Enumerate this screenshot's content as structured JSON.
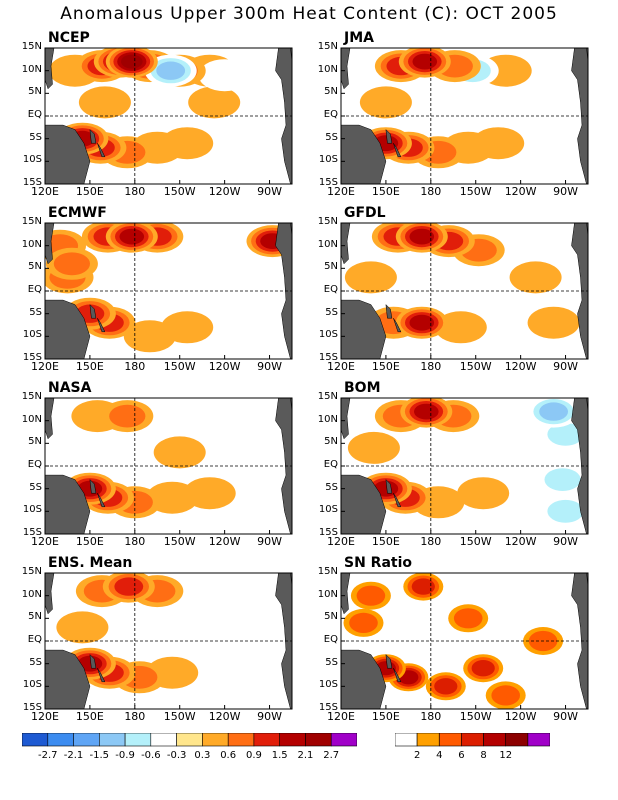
{
  "title": "Anomalous Upper 300m Heat Content (C): OCT 2005",
  "lat_ticks": [
    "15N",
    "10N",
    "5N",
    "EQ",
    "5S",
    "10S",
    "15S"
  ],
  "lon_ticks": [
    "120E",
    "150E",
    "180",
    "150W",
    "120W",
    "90W"
  ],
  "panels": [
    "NCEP",
    "JMA",
    "ECMWF",
    "GFDL",
    "NASA",
    "BOM",
    "ENS. Mean",
    "SN Ratio"
  ],
  "colors": {
    "land": "#5a5a5a",
    "anomaly_scale": [
      "#1e5ad2",
      "#3c8cf0",
      "#5fa5f5",
      "#8cc8f5",
      "#b4f0fa",
      "#ffffff",
      "#ffe68c",
      "#ffaa28",
      "#ff6e14",
      "#e11e0a",
      "#b40000",
      "#a00000",
      "#a000c8"
    ],
    "sn_scale": [
      "#ffffff",
      "#ffa000",
      "#ff5a00",
      "#dc1e00",
      "#b40000",
      "#8c0000",
      "#a000c8"
    ]
  },
  "chart_data": [
    {
      "type": "heatmap",
      "panels": [
        "NCEP",
        "JMA",
        "ECMWF",
        "GFDL",
        "NASA",
        "BOM",
        "ENS. Mean"
      ],
      "x": [
        "120E",
        "150E",
        "180",
        "150W",
        "120W",
        "90W"
      ],
      "y": [
        "15N",
        "10N",
        "5N",
        "EQ",
        "5S",
        "10S",
        "15S"
      ],
      "colorbar_labels": [
        "-2.7",
        "-2.1",
        "-1.5",
        "-0.9",
        "-0.6",
        "-0.3",
        "0.3",
        "0.6",
        "0.9",
        "1.5",
        "2.1",
        "2.7"
      ],
      "features": {
        "NCEP": [
          {
            "lon": 178,
            "lat": 12,
            "v": 2.4
          },
          {
            "lon": 170,
            "lat": 12,
            "v": 1.6
          },
          {
            "lon": 158,
            "lat": 11,
            "v": 1.1
          },
          {
            "lon": 190,
            "lat": 11,
            "v": 0.9
          },
          {
            "lon": 210,
            "lat": 10,
            "v": 0.8
          },
          {
            "lon": 140,
            "lat": 10,
            "v": 0.5
          },
          {
            "lon": 230,
            "lat": 10,
            "v": 0.4
          },
          {
            "lon": 204,
            "lat": 10,
            "v": -0.9
          },
          {
            "lon": 240,
            "lat": 9,
            "v": -0.5
          },
          {
            "lon": 265,
            "lat": 12,
            "v": -0.5
          },
          {
            "lon": 145,
            "lat": -5,
            "v": 1.7
          },
          {
            "lon": 157,
            "lat": -7,
            "v": 1.0
          },
          {
            "lon": 175,
            "lat": -8,
            "v": 0.8
          },
          {
            "lon": 195,
            "lat": -7,
            "v": 0.5
          },
          {
            "lon": 215,
            "lat": -6,
            "v": 0.4
          },
          {
            "lon": 250,
            "lat": -2,
            "v": -0.4
          },
          {
            "lon": 250,
            "lat": -12,
            "v": -0.5
          },
          {
            "lon": 160,
            "lat": 3,
            "v": 0.5
          },
          {
            "lon": 233,
            "lat": 3,
            "v": 0.4
          }
        ],
        "JMA": [
          {
            "lon": 176,
            "lat": 12,
            "v": 1.5
          },
          {
            "lon": 160,
            "lat": 11,
            "v": 0.9
          },
          {
            "lon": 196,
            "lat": 11,
            "v": 0.8
          },
          {
            "lon": 208,
            "lat": 10,
            "v": -0.6
          },
          {
            "lon": 230,
            "lat": 10,
            "v": 0.5
          },
          {
            "lon": 150,
            "lat": -6,
            "v": 1.6
          },
          {
            "lon": 165,
            "lat": -7,
            "v": 1.1
          },
          {
            "lon": 185,
            "lat": -8,
            "v": 0.7
          },
          {
            "lon": 205,
            "lat": -7,
            "v": 0.5
          },
          {
            "lon": 225,
            "lat": -6,
            "v": 0.4
          },
          {
            "lon": 150,
            "lat": 3,
            "v": 0.4
          }
        ],
        "ECMWF": [
          {
            "lon": 178,
            "lat": 12,
            "v": 1.6
          },
          {
            "lon": 162,
            "lat": 12,
            "v": 1.0
          },
          {
            "lon": 195,
            "lat": 12,
            "v": 0.9
          },
          {
            "lon": 272,
            "lat": 11,
            "v": 1.8
          },
          {
            "lon": 130,
            "lat": 10,
            "v": 0.6
          },
          {
            "lon": 138,
            "lat": 6,
            "v": 0.7
          },
          {
            "lon": 135,
            "lat": 3,
            "v": 0.6
          },
          {
            "lon": 150,
            "lat": -5,
            "v": 1.4
          },
          {
            "lon": 163,
            "lat": -7,
            "v": 1.0
          },
          {
            "lon": 190,
            "lat": -10,
            "v": 0.5
          },
          {
            "lon": 215,
            "lat": -8,
            "v": 0.4
          },
          {
            "lon": 240,
            "lat": 0,
            "v": -0.4
          },
          {
            "lon": 262,
            "lat": -8,
            "v": -0.4
          }
        ],
        "GFDL": [
          {
            "lon": 174,
            "lat": 12,
            "v": 1.7
          },
          {
            "lon": 158,
            "lat": 12,
            "v": 1.0
          },
          {
            "lon": 192,
            "lat": 11,
            "v": 0.9
          },
          {
            "lon": 212,
            "lat": 9,
            "v": 0.7
          },
          {
            "lon": 197,
            "lat": 10,
            "v": -0.6
          },
          {
            "lon": 155,
            "lat": -7,
            "v": 0.8
          },
          {
            "lon": 174,
            "lat": -7,
            "v": 1.5
          },
          {
            "lon": 200,
            "lat": -8,
            "v": 0.5
          },
          {
            "lon": 140,
            "lat": 3,
            "v": 0.5
          },
          {
            "lon": 250,
            "lat": 3,
            "v": 0.4
          },
          {
            "lon": 262,
            "lat": -7,
            "v": 0.4
          }
        ],
        "NASA": [
          {
            "lon": 175,
            "lat": 11,
            "v": 0.8
          },
          {
            "lon": 155,
            "lat": 11,
            "v": 0.5
          },
          {
            "lon": 150,
            "lat": -5,
            "v": 1.6
          },
          {
            "lon": 162,
            "lat": -7,
            "v": 1.1
          },
          {
            "lon": 180,
            "lat": -8,
            "v": 0.7
          },
          {
            "lon": 205,
            "lat": -7,
            "v": 0.4
          },
          {
            "lon": 230,
            "lat": -6,
            "v": 0.4
          },
          {
            "lon": 210,
            "lat": 3,
            "v": 0.35
          }
        ],
        "BOM": [
          {
            "lon": 177,
            "lat": 12,
            "v": 1.6
          },
          {
            "lon": 160,
            "lat": 11,
            "v": 0.8
          },
          {
            "lon": 195,
            "lat": 11,
            "v": 0.7
          },
          {
            "lon": 262,
            "lat": 12,
            "v": -0.9
          },
          {
            "lon": 270,
            "lat": 7,
            "v": -0.6
          },
          {
            "lon": 268,
            "lat": -3,
            "v": -0.7
          },
          {
            "lon": 270,
            "lat": -10,
            "v": -0.8
          },
          {
            "lon": 150,
            "lat": -5,
            "v": 1.5
          },
          {
            "lon": 163,
            "lat": -7,
            "v": 1.0
          },
          {
            "lon": 185,
            "lat": -8,
            "v": 0.5
          },
          {
            "lon": 215,
            "lat": -6,
            "v": 0.4
          },
          {
            "lon": 142,
            "lat": 4,
            "v": 0.5
          }
        ],
        "ENS. Mean": [
          {
            "lon": 176,
            "lat": 12,
            "v": 1.1
          },
          {
            "lon": 158,
            "lat": 11,
            "v": 0.8
          },
          {
            "lon": 195,
            "lat": 11,
            "v": 0.6
          },
          {
            "lon": 210,
            "lat": 10,
            "v": -0.4
          },
          {
            "lon": 150,
            "lat": -5,
            "v": 1.5
          },
          {
            "lon": 163,
            "lat": -7,
            "v": 1.1
          },
          {
            "lon": 183,
            "lat": -8,
            "v": 0.6
          },
          {
            "lon": 205,
            "lat": -7,
            "v": 0.4
          },
          {
            "lon": 266,
            "lat": -10,
            "v": -0.4
          },
          {
            "lon": 145,
            "lat": 3,
            "v": 0.4
          }
        ]
      }
    },
    {
      "type": "heatmap",
      "panels": [
        "SN Ratio"
      ],
      "x": [
        "120E",
        "150E",
        "180",
        "150W",
        "120W",
        "90W"
      ],
      "y": [
        "15N",
        "10N",
        "5N",
        "EQ",
        "5S",
        "10S",
        "15S"
      ],
      "colorbar_labels": [
        "2",
        "4",
        "6",
        "8",
        "12"
      ],
      "features": {
        "SN Ratio": [
          {
            "lon": 150,
            "lat": -6,
            "v": 9
          },
          {
            "lon": 165,
            "lat": -8,
            "v": 8
          },
          {
            "lon": 190,
            "lat": -10,
            "v": 7
          },
          {
            "lon": 215,
            "lat": -6,
            "v": 6
          },
          {
            "lon": 175,
            "lat": 12,
            "v": 7
          },
          {
            "lon": 140,
            "lat": 10,
            "v": 5
          },
          {
            "lon": 230,
            "lat": -12,
            "v": 5
          },
          {
            "lon": 255,
            "lat": 0,
            "v": 4
          },
          {
            "lon": 205,
            "lat": 5,
            "v": 4
          },
          {
            "lon": 135,
            "lat": 4,
            "v": 4
          }
        ]
      }
    }
  ]
}
